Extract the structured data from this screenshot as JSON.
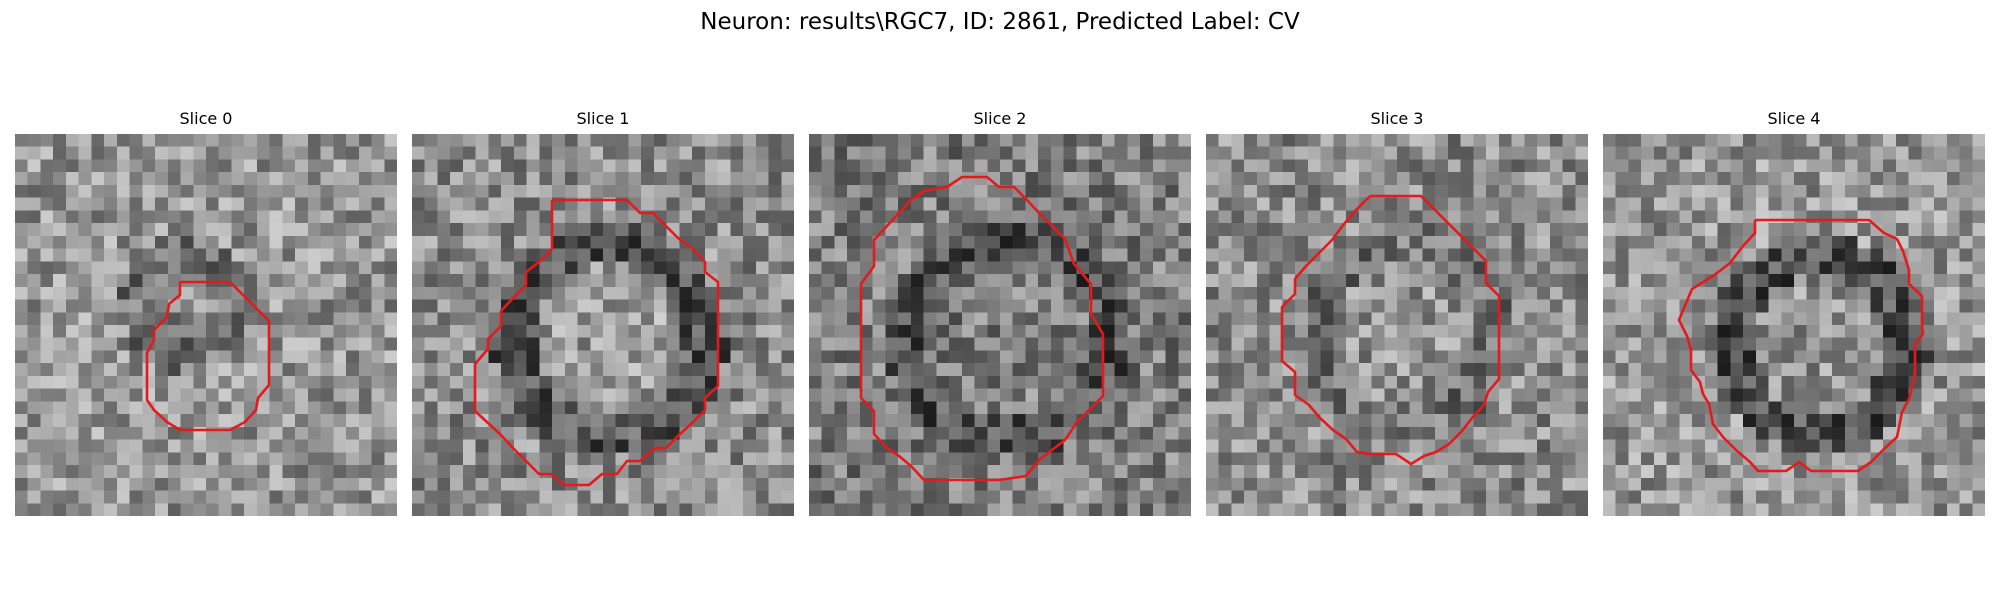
{
  "figure": {
    "title": "Neuron: results\\RGC7, ID: 2861, Predicted Label: CV"
  },
  "colors": {
    "background": "#ffffff",
    "contour": "#e41a1c"
  },
  "panels": [
    {
      "title": "Slice 0",
      "colormap": "gray",
      "contour": "red outline of a small cell"
    },
    {
      "title": "Slice 1",
      "colormap": "gray",
      "contour": "red outline of a large cell"
    },
    {
      "title": "Slice 2",
      "colormap": "gray",
      "contour": "red outline of a large cell"
    },
    {
      "title": "Slice 3",
      "colormap": "gray",
      "contour": "red outline of a large cell"
    },
    {
      "title": "Slice 4",
      "colormap": "gray",
      "contour": "red outline of a large cell"
    }
  ]
}
